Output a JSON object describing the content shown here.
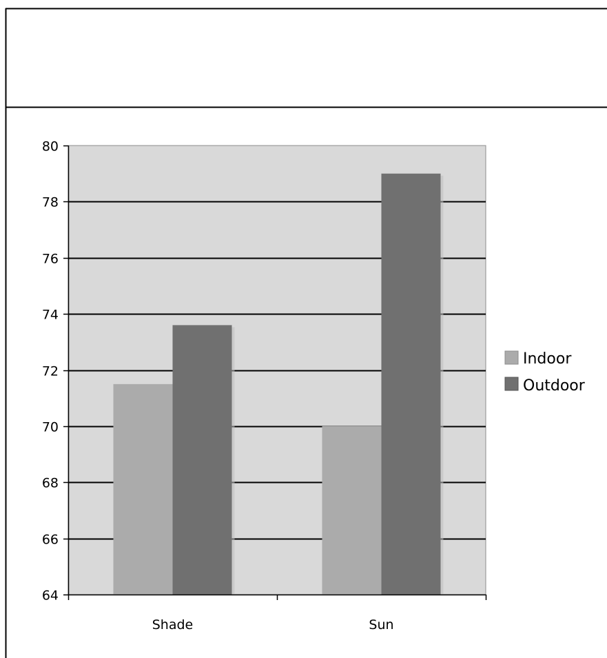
{
  "chart_data": {
    "type": "bar",
    "categories": [
      "Shade",
      "Sun"
    ],
    "series": [
      {
        "name": "Indoor",
        "values": [
          71.5,
          70
        ],
        "color": "#ababab"
      },
      {
        "name": "Outdoor",
        "values": [
          73.6,
          79
        ],
        "color": "#707070"
      }
    ],
    "title": "",
    "xlabel": "",
    "ylabel": "",
    "ylim": [
      64,
      80
    ],
    "yticks": [
      "64",
      "66",
      "68",
      "70",
      "72",
      "74",
      "76",
      "78",
      "80"
    ],
    "grid": true,
    "legend_position": "right",
    "plot_background": "#d9d9d9",
    "gridline_color": "#000000"
  }
}
